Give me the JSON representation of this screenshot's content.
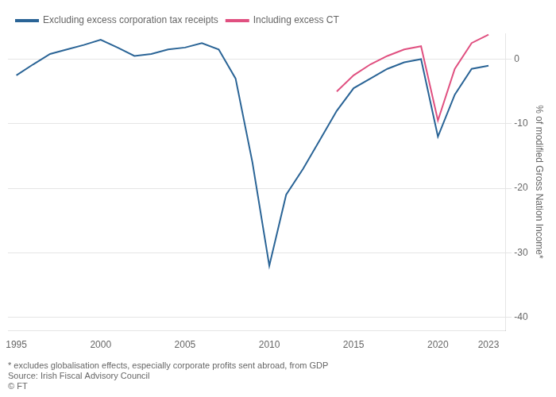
{
  "chart_data": {
    "type": "line",
    "ylabel": "% of modified Gross Nation Income*",
    "annotations": [
      "* excludes globalisation effects, especially corporate profits sent abroad, from GDP",
      "Source: Irish Fiscal Advisory Council",
      "© FT"
    ],
    "series": [
      {
        "name": "Excluding excess corporation tax receipts",
        "color": "#2a6496",
        "x": [
          1995,
          1996,
          1997,
          1998,
          1999,
          2000,
          2001,
          2002,
          2003,
          2004,
          2005,
          2006,
          2007,
          2008,
          2009,
          2010,
          2011,
          2012,
          2013,
          2014,
          2015,
          2016,
          2017,
          2018,
          2019,
          2020,
          2021,
          2022,
          2023
        ],
        "values": [
          -2.5,
          -0.8,
          0.8,
          1.5,
          2.2,
          3.0,
          1.8,
          0.5,
          0.8,
          1.5,
          1.8,
          2.5,
          1.5,
          -3.0,
          -16.0,
          -32.0,
          -21.0,
          -17.0,
          -12.5,
          -8.0,
          -4.5,
          -3.0,
          -1.5,
          -0.5,
          0.0,
          -12.0,
          -5.5,
          -1.5,
          -1.0
        ]
      },
      {
        "name": "Including excess CT",
        "color": "#e05080",
        "x": [
          2014,
          2015,
          2016,
          2017,
          2018,
          2019,
          2020,
          2021,
          2022,
          2023
        ],
        "values": [
          -5.0,
          -2.5,
          -0.8,
          0.5,
          1.5,
          2.0,
          -9.5,
          -1.5,
          2.5,
          3.8
        ]
      }
    ],
    "xlim": [
      1994.5,
      2024.0
    ],
    "xticks": [
      1995,
      2000,
      2005,
      2010,
      2015,
      2020,
      2023
    ],
    "ylim": [
      -42,
      4
    ],
    "yticks": [
      0,
      -10,
      -20,
      -30,
      -40
    ],
    "grid": "y",
    "legend": "upper left"
  }
}
